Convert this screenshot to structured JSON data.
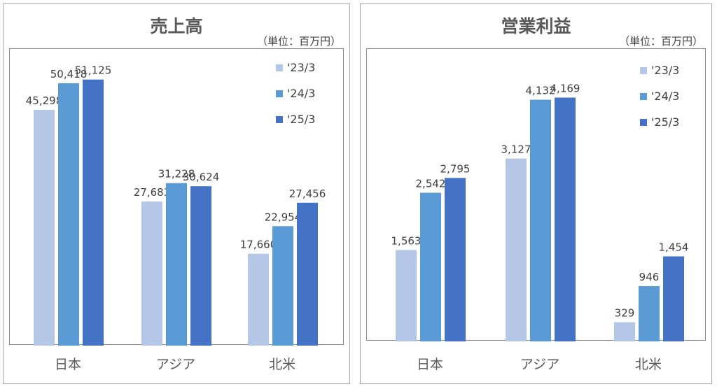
{
  "charts": [
    {
      "title": "売上高",
      "unit_note": "（単位：百万円）"
    },
    {
      "title": "営業利益",
      "unit_note": "（単位：百万円）"
    }
  ],
  "chart_data": [
    {
      "type": "bar",
      "title": "売上高",
      "xlabel": "",
      "ylabel": "",
      "ylim": [
        0,
        57000
      ],
      "grid": false,
      "legend_position": "top-right",
      "categories": [
        "日本",
        "アジア",
        "北米"
      ],
      "series": [
        {
          "name": "'23/3",
          "color": "#b4c7e7",
          "values": [
            45298,
            27683,
            17660
          ],
          "labels": [
            "45,298",
            "27,683",
            "17,660"
          ]
        },
        {
          "name": "'24/3",
          "color": "#5b9bd5",
          "values": [
            50418,
            31228,
            22954
          ],
          "labels": [
            "50,418",
            "31,228",
            "22,954"
          ]
        },
        {
          "name": "'25/3",
          "color": "#4472c4",
          "values": [
            51125,
            30624,
            27456
          ],
          "labels": [
            "51,125",
            "30,624",
            "27,456"
          ]
        }
      ]
    },
    {
      "type": "bar",
      "title": "営業利益",
      "xlabel": "",
      "ylabel": "",
      "ylim": [
        0,
        5000
      ],
      "grid": false,
      "legend_position": "top-right",
      "categories": [
        "日本",
        "アジア",
        "北米"
      ],
      "series": [
        {
          "name": "'23/3",
          "color": "#b4c7e7",
          "values": [
            1563,
            3127,
            329
          ],
          "labels": [
            "1,563",
            "3,127",
            "329"
          ]
        },
        {
          "name": "'24/3",
          "color": "#5b9bd5",
          "values": [
            2542,
            4132,
            946
          ],
          "labels": [
            "2,542",
            "4,132",
            "946"
          ]
        },
        {
          "name": "'25/3",
          "color": "#4472c4",
          "values": [
            2795,
            4169,
            1454
          ],
          "labels": [
            "2,795",
            "4,169",
            "1,454"
          ]
        }
      ]
    }
  ]
}
